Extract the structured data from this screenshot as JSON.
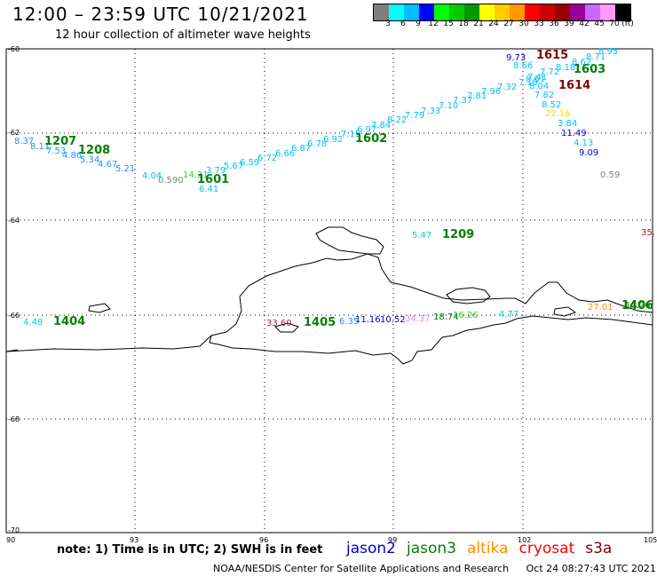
{
  "title": "12:00 – 23:59 UTC 10/21/2021",
  "subtitle": "12 hour collection of altimeter wave heights",
  "colorbar": {
    "colors": [
      "#7f7f7f",
      "#00ffff",
      "#00bfff",
      "#0000ff",
      "#00ff00",
      "#00cc00",
      "#009900",
      "#ffff00",
      "#ffcc00",
      "#ff9900",
      "#ff0000",
      "#cc0000",
      "#990000",
      "#990099",
      "#cc66ff",
      "#ff99ff",
      "#000000"
    ],
    "labels": [
      "3",
      "6",
      "9",
      "12",
      "15",
      "18",
      "21",
      "24",
      "27",
      "30",
      "33",
      "36",
      "39",
      "42",
      "45",
      "70",
      "(ft)"
    ]
  },
  "axes": {
    "lon_labels": [
      "90",
      "93",
      "96",
      "99",
      "102",
      "105"
    ],
    "lat_labels": [
      "-60",
      "-62",
      "-64",
      "-66",
      "-68",
      "-70"
    ]
  },
  "tracks": [
    {
      "label": "1207",
      "color": "#008000"
    },
    {
      "label": "1208",
      "color": "#008000"
    },
    {
      "label": "1601",
      "color": "#008000"
    },
    {
      "label": "1602",
      "color": "#008000"
    },
    {
      "label": "1615",
      "color": "#800000"
    },
    {
      "label": "1603",
      "color": "#008000"
    },
    {
      "label": "1614",
      "color": "#800000"
    },
    {
      "label": "1209",
      "color": "#008000"
    },
    {
      "label": "1404",
      "color": "#008000"
    },
    {
      "label": "1405",
      "color": "#008000"
    },
    {
      "label": "1406",
      "color": "#008000"
    }
  ],
  "readings": [
    {
      "v": "8.37",
      "c": "#1e90ff"
    },
    {
      "v": "8.11",
      "c": "#1e90ff"
    },
    {
      "v": "7.53",
      "c": "#1e90ff"
    },
    {
      "v": "4.86",
      "c": "#1e90ff"
    },
    {
      "v": "5.34",
      "c": "#1e90ff"
    },
    {
      "v": "4.67",
      "c": "#1e90ff"
    },
    {
      "v": "5.21",
      "c": "#1e90ff"
    },
    {
      "v": "4.04",
      "c": "#00bfff"
    },
    {
      "v": "0.590",
      "c": "#808080"
    },
    {
      "v": "14.31",
      "c": "#32cd32"
    },
    {
      "v": "3.79",
      "c": "#00bfff"
    },
    {
      "v": "6.41",
      "c": "#00bfff"
    },
    {
      "v": "5.67",
      "c": "#00bfff"
    },
    {
      "v": "6.59",
      "c": "#00bfff"
    },
    {
      "v": "6.72",
      "c": "#00bfff"
    },
    {
      "v": "6.66",
      "c": "#00bfff"
    },
    {
      "v": "6.87",
      "c": "#00bfff"
    },
    {
      "v": "6.78",
      "c": "#00bfff"
    },
    {
      "v": "6.92",
      "c": "#00bfff"
    },
    {
      "v": "7.15",
      "c": "#00bfff"
    },
    {
      "v": "6.97",
      "c": "#00bfff"
    },
    {
      "v": "7.84",
      "c": "#00bfff"
    },
    {
      "v": "8.22",
      "c": "#00bfff"
    },
    {
      "v": "7.79",
      "c": "#00bfff"
    },
    {
      "v": "7.33",
      "c": "#00bfff"
    },
    {
      "v": "7.10",
      "c": "#00bfff"
    },
    {
      "v": "7.37",
      "c": "#00bfff"
    },
    {
      "v": "7.81",
      "c": "#00bfff"
    },
    {
      "v": "7.96",
      "c": "#00bfff"
    },
    {
      "v": "7.32",
      "c": "#00bfff"
    },
    {
      "v": "9.73",
      "c": "#0000cd"
    },
    {
      "v": "8.66",
      "c": "#00bfff"
    },
    {
      "v": "8.95",
      "c": "#00bfff"
    },
    {
      "v": "8.71",
      "c": "#00bfff"
    },
    {
      "v": "8.62",
      "c": "#00bfff"
    },
    {
      "v": "8.18",
      "c": "#00bfff"
    },
    {
      "v": "7.72",
      "c": "#00bfff"
    },
    {
      "v": "7.41",
      "c": "#00bfff"
    },
    {
      "v": "7.19",
      "c": "#00bfff"
    },
    {
      "v": "8.61",
      "c": "#00bfff"
    },
    {
      "v": "8.04",
      "c": "#00bfff"
    },
    {
      "v": "7.82",
      "c": "#00bfff"
    },
    {
      "v": "8.52",
      "c": "#00bfff"
    },
    {
      "v": "22.16",
      "c": "#ffd700"
    },
    {
      "v": "3.84",
      "c": "#00bfff"
    },
    {
      "v": "11.49",
      "c": "#0000cd"
    },
    {
      "v": "4.13",
      "c": "#00bfff"
    },
    {
      "v": "9.09",
      "c": "#0000cd"
    },
    {
      "v": "0.59",
      "c": "#808080"
    },
    {
      "v": "5.47",
      "c": "#00ced1"
    },
    {
      "v": "35.",
      "c": "#b22222"
    },
    {
      "v": "4.48",
      "c": "#00ced1"
    },
    {
      "v": "33.60",
      "c": "#b22222"
    },
    {
      "v": "6.35",
      "c": "#1e90ff"
    },
    {
      "v": "11.16",
      "c": "#0000cd"
    },
    {
      "v": "10.52",
      "c": "#0000cd"
    },
    {
      "v": "34.37",
      "c": "#ee82ee"
    },
    {
      "v": "18.74",
      "c": "#008000"
    },
    {
      "v": "16.26",
      "c": "#32cd32"
    },
    {
      "v": "4.77",
      "c": "#00ced1"
    },
    {
      "v": "27.01",
      "c": "#ff8c00"
    },
    {
      "v": "14.26",
      "c": "#008000"
    }
  ],
  "note": "note: 1) Time is in UTC; 2) SWH is in feet",
  "satellites": [
    {
      "name": "jason2",
      "color": "#0000cd"
    },
    {
      "name": "jason3",
      "color": "#008000"
    },
    {
      "name": "altika",
      "color": "#ff8c00"
    },
    {
      "name": "cryosat",
      "color": "#ff0000"
    },
    {
      "name": "s3a",
      "color": "#800000"
    }
  ],
  "footer": {
    "org": "NOAA/NESDIS Center for Satellite Applications and Research",
    "date": "Oct 24 08:27:43 UTC 2021"
  }
}
